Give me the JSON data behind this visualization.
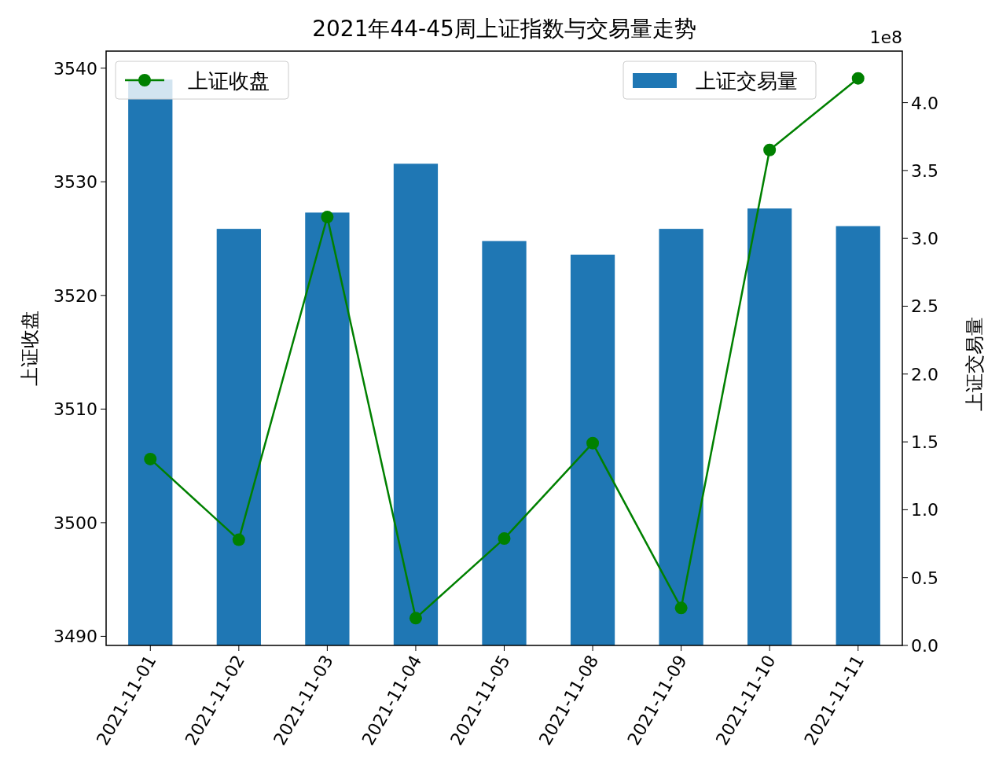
{
  "chart_data": {
    "type": "bar",
    "title": "2021年44-45周上证指数与交易量走势",
    "ylabel": "上证收盘",
    "y2label": "上证交易量",
    "categories": [
      "2021-11-01",
      "2021-11-02",
      "2021-11-03",
      "2021-11-04",
      "2021-11-05",
      "2021-11-08",
      "2021-11-09",
      "2021-11-10",
      "2021-11-11"
    ],
    "series": [
      {
        "name": "上证收盘",
        "type": "line",
        "color": "#008000",
        "marker": "circle",
        "values": [
          3505.6,
          3498.5,
          3526.9,
          3491.6,
          3498.6,
          3507.0,
          3492.5,
          3532.8,
          3539.1
        ]
      },
      {
        "name": "上证交易量",
        "axis": "y2",
        "color": "#1f77b4",
        "values": [
          4.17,
          3.07,
          3.19,
          3.55,
          2.98,
          2.88,
          3.07,
          3.22,
          3.09
        ]
      }
    ],
    "ylim": [
      3489.2,
      3541.5
    ],
    "yticks": [
      3490,
      3500,
      3510,
      3520,
      3530,
      3540
    ],
    "y2lim": [
      0,
      4.38
    ],
    "y2ticks": [
      {
        "value": 0,
        "label": "0.0"
      },
      0.5,
      {
        "value": 1,
        "label": "1.0"
      },
      1.5,
      {
        "value": 2,
        "label": "2.0"
      },
      2.5,
      {
        "value": 3,
        "label": "3.0"
      },
      3.5,
      {
        "value": 4,
        "label": "4.0"
      }
    ],
    "annotations": [
      "1e8"
    ],
    "legend": "top"
  }
}
